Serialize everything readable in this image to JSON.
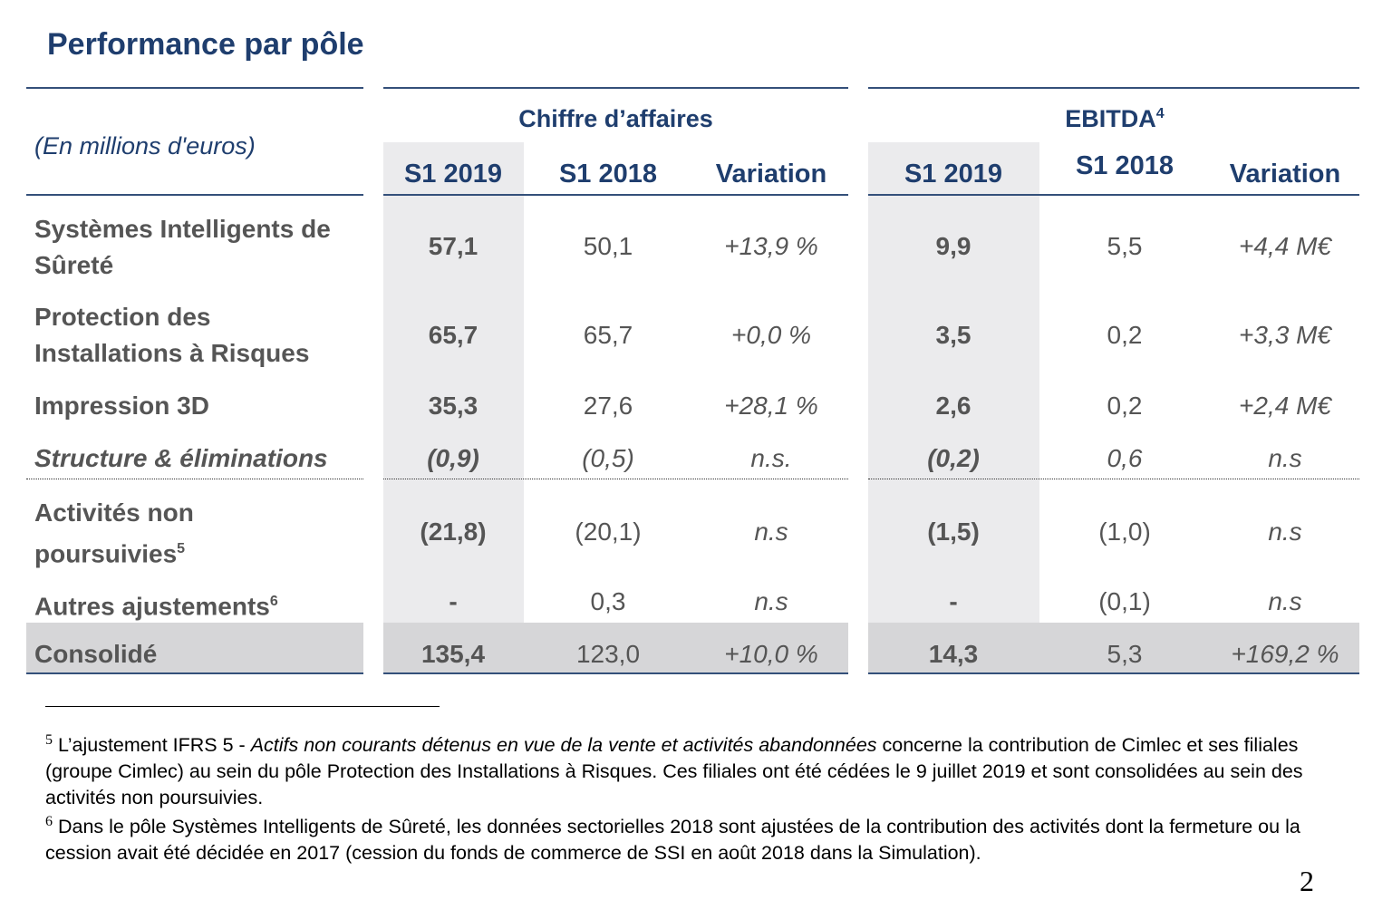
{
  "title": "Performance par pôle",
  "units_label": "(En millions d'euros)",
  "groups": {
    "revenue": "Chiffre d’affaires",
    "ebitda": "EBITDA",
    "ebitda_note": "4"
  },
  "columns": {
    "rev_s1_2019": "S1 2019",
    "rev_s1_2018": "S1 2018",
    "rev_variation": "Variation",
    "ebitda_s1_2019": "S1 2019",
    "ebitda_s1_2018": "S1 2018",
    "ebitda_variation": "Variation"
  },
  "rows": [
    {
      "label_line1": "Systèmes Intelligents de",
      "label_line2": "Sûreté",
      "rev_2019": "57,1",
      "rev_2018": "50,1",
      "rev_var": "+13,9 %",
      "eb_2019": "9,9",
      "eb_2018": "5,5",
      "eb_var": "+4,4 M€"
    },
    {
      "label_line1": "Protection des",
      "label_line2": "Installations à Risques",
      "rev_2019": "65,7",
      "rev_2018": "65,7",
      "rev_var": "+0,0 %",
      "eb_2019": "3,5",
      "eb_2018": "0,2",
      "eb_var": "+3,3 M€"
    },
    {
      "label": "Impression 3D",
      "rev_2019": "35,3",
      "rev_2018": "27,6",
      "rev_var": "+28,1 %",
      "eb_2019": "2,6",
      "eb_2018": "0,2",
      "eb_var": "+2,4 M€"
    },
    {
      "label": "Structure & éliminations",
      "rev_2019": "(0,9)",
      "rev_2018": "(0,5)",
      "rev_var": "n.s.",
      "eb_2019": "(0,2)",
      "eb_2018": "0,6",
      "eb_var": "n.s"
    },
    {
      "label_line1": "Activités non",
      "label_line2": "poursuivies",
      "note": "5",
      "rev_2019": "(21,8)",
      "rev_2018": "(20,1)",
      "rev_var": "n.s",
      "eb_2019": "(1,5)",
      "eb_2018": "(1,0)",
      "eb_var": "n.s"
    },
    {
      "label": "Autres ajustements",
      "note": "6",
      "rev_2019": "-",
      "rev_2018": "0,3",
      "rev_var": "n.s",
      "eb_2019": "-",
      "eb_2018": "(0,1)",
      "eb_var": "n.s"
    },
    {
      "label": "Consolidé",
      "rev_2019": "135,4",
      "rev_2018": "123,0",
      "rev_var": "+10,0 %",
      "eb_2019": "14,3",
      "eb_2018": "5,3",
      "eb_var": "+169,2 %"
    }
  ],
  "footnotes": {
    "fn5_num": "5",
    "fn5_a": " L’ajustement IFRS 5 - ",
    "fn5_b": "Actifs non courants détenus en vue de la vente et activités abandonnées",
    "fn5_c": " concerne la contribution de Cimlec et ses filiales (groupe Cimlec) au sein du pôle Protection des Installations à Risques. Ces filiales ont été cédées le 9 juillet 2019 et sont consolidées au sein des activités non poursuivies.",
    "fn6_num": "6",
    "fn6_text": " Dans le pôle Systèmes Intelligents de Sûreté, les données sectorielles 2018 sont ajustées de la contribution des activités dont la fermeture ou la cession avait été décidée en 2017 (cession du fonds de commerce de SSI en août 2018 dans la Simulation)."
  },
  "page_number": "2"
}
